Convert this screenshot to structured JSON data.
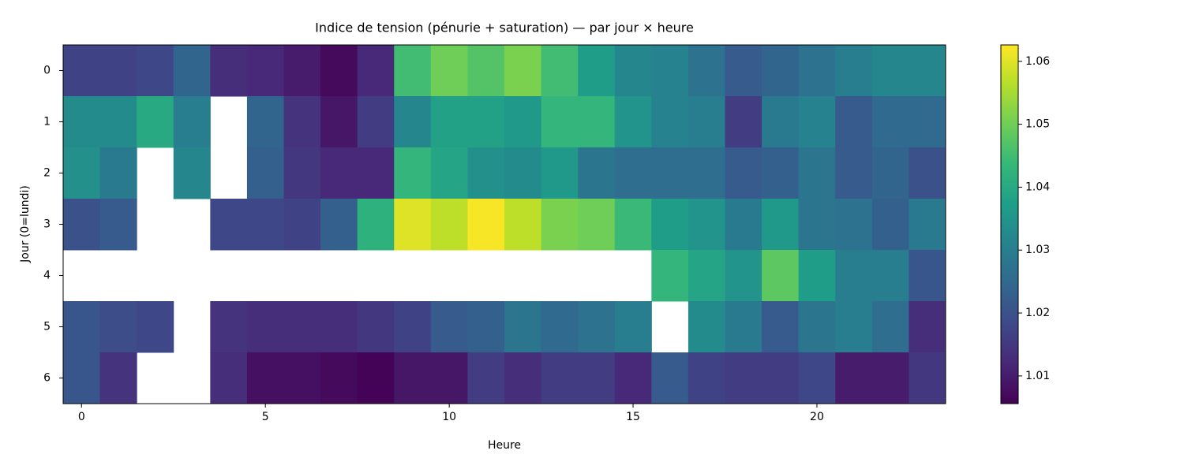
{
  "chart_data": {
    "type": "heatmap",
    "title": "Indice de tension (pénurie + saturation) — par jour × heure",
    "xlabel": "Heure",
    "ylabel": "Jour (0=lundi)",
    "x": [
      0,
      1,
      2,
      3,
      4,
      5,
      6,
      7,
      8,
      9,
      10,
      11,
      12,
      13,
      14,
      15,
      16,
      17,
      18,
      19,
      20,
      21,
      22,
      23
    ],
    "y": [
      0,
      1,
      2,
      3,
      4,
      5,
      6
    ],
    "xlim": [
      -0.5,
      23.5
    ],
    "ylim": [
      6.5,
      -0.5
    ],
    "xticks": [
      0,
      5,
      10,
      15,
      20
    ],
    "yticks": [
      0,
      1,
      2,
      3,
      4,
      5,
      6
    ],
    "colormap": "viridis",
    "clim": [
      1.0056,
      1.0626
    ],
    "colorbar_ticks": [
      1.01,
      1.02,
      1.03,
      1.04,
      1.05,
      1.06
    ],
    "values": [
      [
        1.017,
        1.017,
        1.018,
        1.024,
        1.013,
        1.012,
        1.01,
        1.007,
        1.012,
        1.045,
        1.05,
        1.047,
        1.051,
        1.045,
        1.037,
        1.032,
        1.031,
        1.027,
        1.022,
        1.024,
        1.027,
        1.03,
        1.032,
        1.032
      ],
      [
        1.033,
        1.033,
        1.04,
        1.03,
        null,
        1.024,
        1.014,
        1.009,
        1.016,
        1.032,
        1.038,
        1.038,
        1.036,
        1.043,
        1.043,
        1.035,
        1.031,
        1.03,
        1.016,
        1.029,
        1.031,
        1.022,
        1.025,
        1.025
      ],
      [
        1.034,
        1.029,
        null,
        1.032,
        null,
        1.023,
        1.015,
        1.012,
        1.012,
        1.043,
        1.039,
        1.034,
        1.033,
        1.036,
        1.028,
        1.026,
        1.026,
        1.026,
        1.022,
        1.023,
        1.028,
        1.022,
        1.024,
        1.02
      ],
      [
        1.02,
        1.022,
        null,
        null,
        1.018,
        1.018,
        1.017,
        1.023,
        1.042,
        1.06,
        1.057,
        1.062,
        1.057,
        1.051,
        1.05,
        1.044,
        1.037,
        1.035,
        1.029,
        1.036,
        1.028,
        1.027,
        1.023,
        1.029
      ],
      [
        null,
        null,
        null,
        null,
        null,
        null,
        null,
        null,
        null,
        null,
        null,
        null,
        null,
        null,
        null,
        null,
        1.043,
        1.039,
        1.035,
        1.048,
        1.037,
        1.03,
        1.03,
        1.021
      ],
      [
        1.021,
        1.019,
        1.018,
        null,
        1.014,
        1.013,
        1.013,
        1.013,
        1.015,
        1.017,
        1.022,
        1.023,
        1.028,
        1.025,
        1.027,
        1.03,
        null,
        1.033,
        1.029,
        1.022,
        1.028,
        1.03,
        1.026,
        1.013
      ],
      [
        1.021,
        1.014,
        null,
        null,
        1.013,
        1.008,
        1.008,
        1.007,
        1.006,
        1.009,
        1.009,
        1.016,
        1.013,
        1.016,
        1.016,
        1.012,
        1.022,
        1.017,
        1.016,
        1.016,
        1.018,
        1.01,
        1.01,
        1.015
      ]
    ]
  }
}
